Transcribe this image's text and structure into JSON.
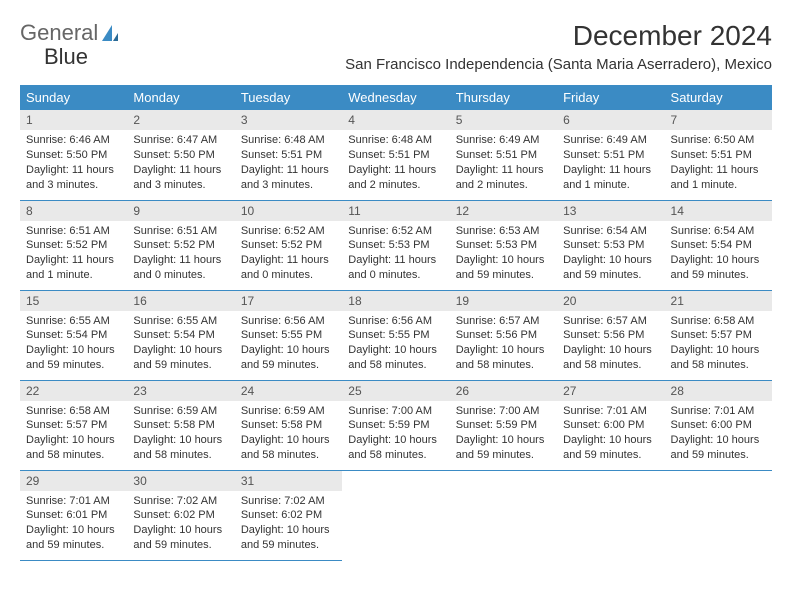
{
  "logo": {
    "text1": "General",
    "text2": "Blue"
  },
  "title": "December 2024",
  "location": "San Francisco Independencia (Santa Maria Aserradero), Mexico",
  "colors": {
    "header_bg": "#3b8bc4",
    "header_text": "#ffffff",
    "daynum_bg": "#e9e9e9",
    "row_border": "#3b8bc4",
    "page_bg": "#ffffff",
    "text": "#333333",
    "logo_accent": "#3b8bc4"
  },
  "typography": {
    "title_fontsize": 28,
    "location_fontsize": 15,
    "header_fontsize": 13,
    "daynum_fontsize": 12,
    "info_fontsize": 11
  },
  "weekdays": [
    "Sunday",
    "Monday",
    "Tuesday",
    "Wednesday",
    "Thursday",
    "Friday",
    "Saturday"
  ],
  "days": [
    {
      "n": "1",
      "sunrise": "6:46 AM",
      "sunset": "5:50 PM",
      "daylight": "11 hours and 3 minutes."
    },
    {
      "n": "2",
      "sunrise": "6:47 AM",
      "sunset": "5:50 PM",
      "daylight": "11 hours and 3 minutes."
    },
    {
      "n": "3",
      "sunrise": "6:48 AM",
      "sunset": "5:51 PM",
      "daylight": "11 hours and 3 minutes."
    },
    {
      "n": "4",
      "sunrise": "6:48 AM",
      "sunset": "5:51 PM",
      "daylight": "11 hours and 2 minutes."
    },
    {
      "n": "5",
      "sunrise": "6:49 AM",
      "sunset": "5:51 PM",
      "daylight": "11 hours and 2 minutes."
    },
    {
      "n": "6",
      "sunrise": "6:49 AM",
      "sunset": "5:51 PM",
      "daylight": "11 hours and 1 minute."
    },
    {
      "n": "7",
      "sunrise": "6:50 AM",
      "sunset": "5:51 PM",
      "daylight": "11 hours and 1 minute."
    },
    {
      "n": "8",
      "sunrise": "6:51 AM",
      "sunset": "5:52 PM",
      "daylight": "11 hours and 1 minute."
    },
    {
      "n": "9",
      "sunrise": "6:51 AM",
      "sunset": "5:52 PM",
      "daylight": "11 hours and 0 minutes."
    },
    {
      "n": "10",
      "sunrise": "6:52 AM",
      "sunset": "5:52 PM",
      "daylight": "11 hours and 0 minutes."
    },
    {
      "n": "11",
      "sunrise": "6:52 AM",
      "sunset": "5:53 PM",
      "daylight": "11 hours and 0 minutes."
    },
    {
      "n": "12",
      "sunrise": "6:53 AM",
      "sunset": "5:53 PM",
      "daylight": "10 hours and 59 minutes."
    },
    {
      "n": "13",
      "sunrise": "6:54 AM",
      "sunset": "5:53 PM",
      "daylight": "10 hours and 59 minutes."
    },
    {
      "n": "14",
      "sunrise": "6:54 AM",
      "sunset": "5:54 PM",
      "daylight": "10 hours and 59 minutes."
    },
    {
      "n": "15",
      "sunrise": "6:55 AM",
      "sunset": "5:54 PM",
      "daylight": "10 hours and 59 minutes."
    },
    {
      "n": "16",
      "sunrise": "6:55 AM",
      "sunset": "5:54 PM",
      "daylight": "10 hours and 59 minutes."
    },
    {
      "n": "17",
      "sunrise": "6:56 AM",
      "sunset": "5:55 PM",
      "daylight": "10 hours and 59 minutes."
    },
    {
      "n": "18",
      "sunrise": "6:56 AM",
      "sunset": "5:55 PM",
      "daylight": "10 hours and 58 minutes."
    },
    {
      "n": "19",
      "sunrise": "6:57 AM",
      "sunset": "5:56 PM",
      "daylight": "10 hours and 58 minutes."
    },
    {
      "n": "20",
      "sunrise": "6:57 AM",
      "sunset": "5:56 PM",
      "daylight": "10 hours and 58 minutes."
    },
    {
      "n": "21",
      "sunrise": "6:58 AM",
      "sunset": "5:57 PM",
      "daylight": "10 hours and 58 minutes."
    },
    {
      "n": "22",
      "sunrise": "6:58 AM",
      "sunset": "5:57 PM",
      "daylight": "10 hours and 58 minutes."
    },
    {
      "n": "23",
      "sunrise": "6:59 AM",
      "sunset": "5:58 PM",
      "daylight": "10 hours and 58 minutes."
    },
    {
      "n": "24",
      "sunrise": "6:59 AM",
      "sunset": "5:58 PM",
      "daylight": "10 hours and 58 minutes."
    },
    {
      "n": "25",
      "sunrise": "7:00 AM",
      "sunset": "5:59 PM",
      "daylight": "10 hours and 58 minutes."
    },
    {
      "n": "26",
      "sunrise": "7:00 AM",
      "sunset": "5:59 PM",
      "daylight": "10 hours and 59 minutes."
    },
    {
      "n": "27",
      "sunrise": "7:01 AM",
      "sunset": "6:00 PM",
      "daylight": "10 hours and 59 minutes."
    },
    {
      "n": "28",
      "sunrise": "7:01 AM",
      "sunset": "6:00 PM",
      "daylight": "10 hours and 59 minutes."
    },
    {
      "n": "29",
      "sunrise": "7:01 AM",
      "sunset": "6:01 PM",
      "daylight": "10 hours and 59 minutes."
    },
    {
      "n": "30",
      "sunrise": "7:02 AM",
      "sunset": "6:02 PM",
      "daylight": "10 hours and 59 minutes."
    },
    {
      "n": "31",
      "sunrise": "7:02 AM",
      "sunset": "6:02 PM",
      "daylight": "10 hours and 59 minutes."
    }
  ],
  "labels": {
    "sunrise": "Sunrise:",
    "sunset": "Sunset:",
    "daylight": "Daylight:"
  },
  "layout": {
    "first_weekday_index": 0,
    "columns": 7,
    "rows": 5
  }
}
